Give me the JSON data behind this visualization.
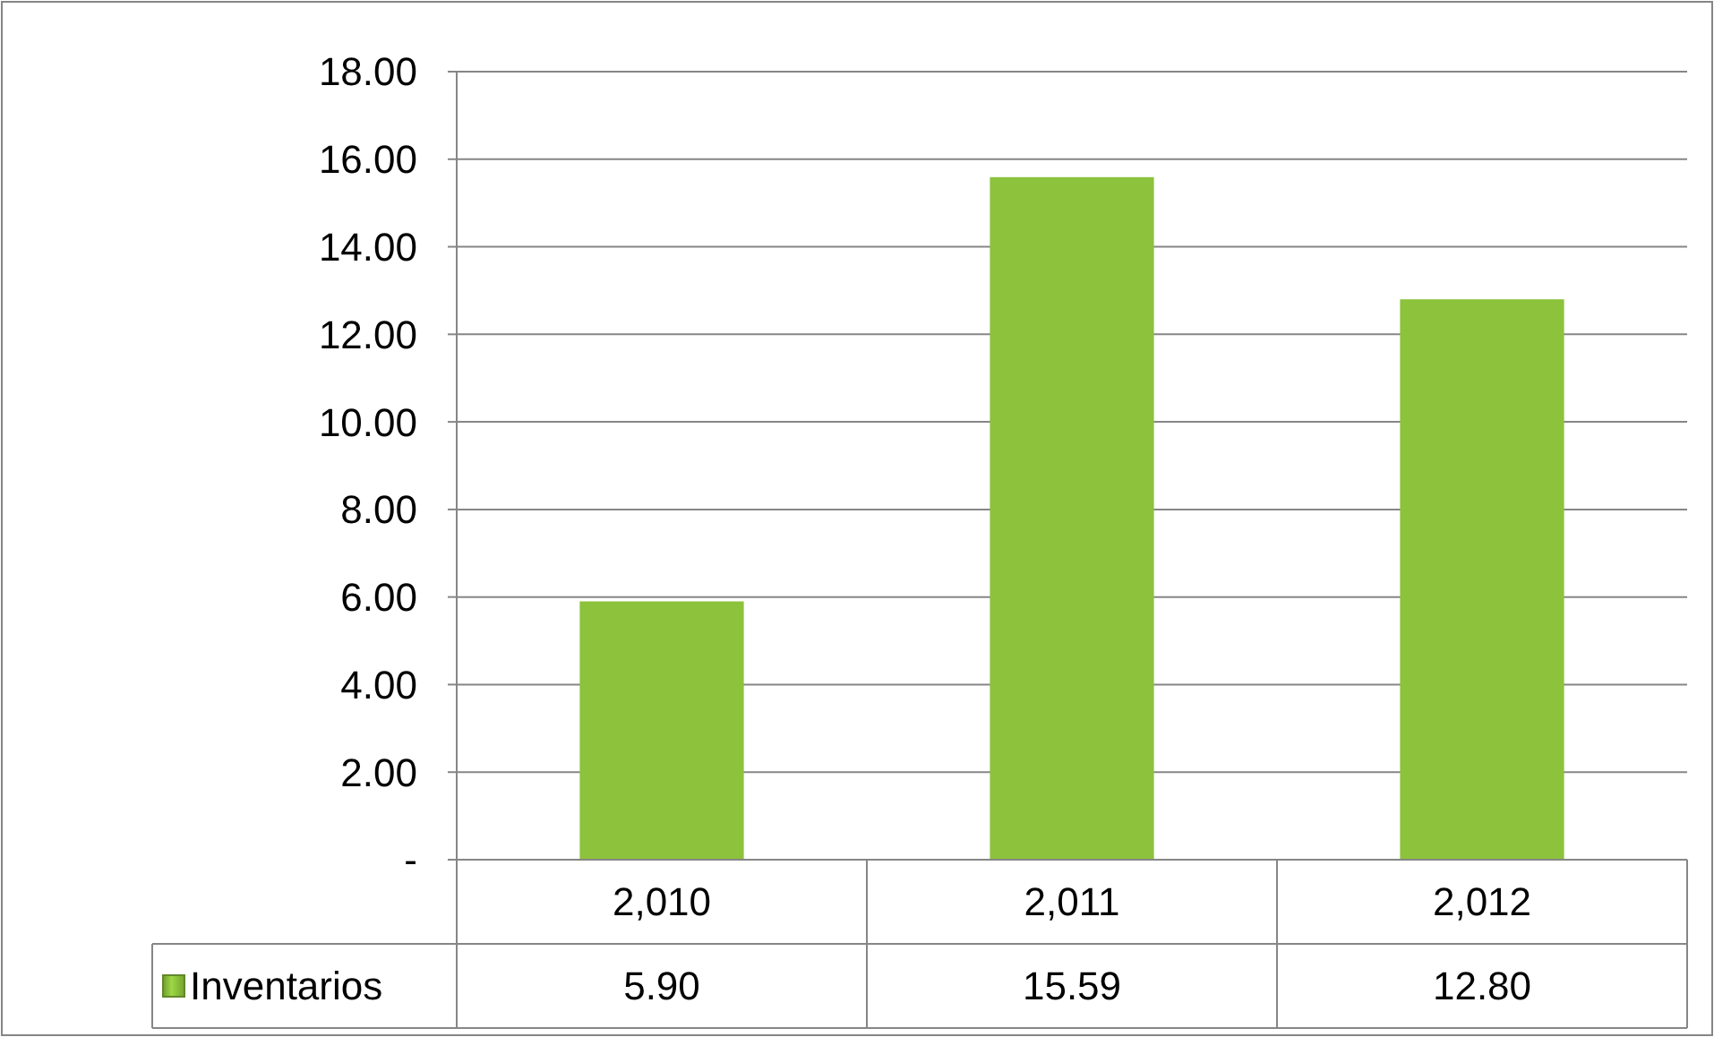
{
  "chart_data": {
    "type": "bar",
    "categories": [
      "2,010",
      "2,011",
      "2,012"
    ],
    "series": [
      {
        "name": "Inventarios",
        "color": "#8cc23c",
        "values": [
          5.9,
          15.59,
          12.8
        ],
        "value_labels": [
          "5.90",
          "15.59",
          "12.80"
        ]
      }
    ],
    "ylim": [
      0,
      18
    ],
    "yticks": [
      {
        "value": 0,
        "label": "-"
      },
      {
        "value": 2,
        "label": "2.00"
      },
      {
        "value": 4,
        "label": "4.00"
      },
      {
        "value": 6,
        "label": "6.00"
      },
      {
        "value": 8,
        "label": "8.00"
      },
      {
        "value": 10,
        "label": "10.00"
      },
      {
        "value": 12,
        "label": "12.00"
      },
      {
        "value": 14,
        "label": "14.00"
      },
      {
        "value": 16,
        "label": "16.00"
      },
      {
        "value": 18,
        "label": "18.00"
      }
    ],
    "grid": "y",
    "legend": "bottom"
  }
}
